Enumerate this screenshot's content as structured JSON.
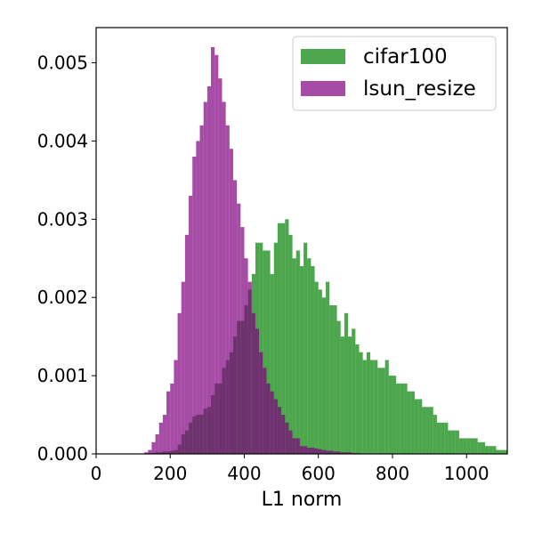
{
  "chart_data": {
    "type": "histogram",
    "title": "",
    "xlabel": "L1 norm",
    "ylabel": "",
    "xlim": [
      0,
      1110
    ],
    "ylim": [
      0,
      0.00545
    ],
    "x_ticks": [
      0,
      200,
      400,
      600,
      800,
      1000
    ],
    "x_tick_labels": [
      "0",
      "200",
      "400",
      "600",
      "800",
      "1000"
    ],
    "y_ticks": [
      0.0,
      0.001,
      0.002,
      0.003,
      0.004,
      0.005
    ],
    "y_tick_labels": [
      "0.000",
      "0.001",
      "0.002",
      "0.003",
      "0.004",
      "0.005"
    ],
    "grid": false,
    "legend_position": "top-right",
    "bin_width": 10,
    "series": [
      {
        "name": "cifar100",
        "color": "#008000",
        "alpha": 0.7,
        "bin_starts": [
          140,
          150,
          160,
          170,
          180,
          190,
          200,
          210,
          220,
          230,
          240,
          250,
          260,
          270,
          280,
          290,
          300,
          310,
          320,
          330,
          340,
          350,
          360,
          370,
          380,
          390,
          400,
          410,
          420,
          430,
          440,
          450,
          460,
          470,
          480,
          490,
          500,
          510,
          520,
          530,
          540,
          550,
          560,
          570,
          580,
          590,
          600,
          610,
          620,
          630,
          640,
          650,
          660,
          670,
          680,
          690,
          700,
          710,
          720,
          730,
          740,
          750,
          760,
          770,
          780,
          790,
          800,
          810,
          820,
          830,
          840,
          850,
          860,
          870,
          880,
          890,
          900,
          910,
          920,
          930,
          940,
          950,
          960,
          970,
          980,
          990,
          1000,
          1010,
          1020,
          1030,
          1040,
          1050,
          1060,
          1070,
          1080,
          1090,
          1100
        ],
        "values": [
          1e-05,
          1e-05,
          2e-05,
          2e-05,
          3e-05,
          3e-05,
          4e-05,
          5e-05,
          0.00012,
          0.00025,
          0.0003,
          0.0004,
          0.00048,
          0.0005,
          0.0005,
          0.00058,
          0.0006,
          0.00075,
          0.0009,
          0.0009,
          0.0011,
          0.0012,
          0.0013,
          0.0015,
          0.0017,
          0.0017,
          0.0019,
          0.0021,
          0.0023,
          0.0027,
          0.0027,
          0.0026,
          0.0026,
          0.0023,
          0.0027,
          0.00295,
          0.00295,
          0.003,
          0.0028,
          0.0025,
          0.0026,
          0.0024,
          0.0027,
          0.0025,
          0.0024,
          0.0022,
          0.0021,
          0.002,
          0.0022,
          0.0019,
          0.0019,
          0.0017,
          0.0015,
          0.0018,
          0.0015,
          0.0016,
          0.0014,
          0.0013,
          0.0012,
          0.0013,
          0.0012,
          0.0012,
          0.0011,
          0.0011,
          0.0012,
          0.001,
          0.001,
          0.0009,
          0.0009,
          0.0009,
          0.0008,
          0.0008,
          0.0007,
          0.0007,
          0.0006,
          0.0006,
          0.0006,
          0.0005,
          0.0004,
          0.0004,
          0.0004,
          0.0003,
          0.0003,
          0.0003,
          0.0002,
          0.0002,
          0.0002,
          0.0002,
          0.0002,
          0.00015,
          0.00015,
          0.0001,
          0.0001,
          0.0001,
          5e-05,
          5e-05,
          5e-05
        ]
      },
      {
        "name": "lsun_resize",
        "color": "#800080",
        "alpha": 0.7,
        "bin_starts": [
          130,
          140,
          150,
          160,
          170,
          180,
          190,
          200,
          210,
          220,
          230,
          240,
          250,
          260,
          270,
          280,
          290,
          300,
          310,
          320,
          330,
          340,
          350,
          360,
          370,
          380,
          390,
          400,
          410,
          420,
          430,
          440,
          450,
          460,
          470,
          480,
          490,
          500,
          510,
          520,
          530,
          540,
          550,
          560,
          570,
          580,
          590,
          600,
          610,
          620,
          630,
          640,
          650,
          660,
          670,
          680,
          690,
          700
        ],
        "values": [
          2e-05,
          5e-05,
          0.00015,
          0.00025,
          0.0004,
          0.0005,
          0.0008,
          0.0009,
          0.0012,
          0.0018,
          0.0022,
          0.0028,
          0.0033,
          0.0038,
          0.004,
          0.0042,
          0.0045,
          0.0047,
          0.0052,
          0.0051,
          0.0048,
          0.0045,
          0.0042,
          0.0039,
          0.0035,
          0.0032,
          0.0029,
          0.0025,
          0.0022,
          0.0018,
          0.0016,
          0.0013,
          0.0011,
          0.0009,
          0.0008,
          0.0007,
          0.0006,
          0.0005,
          0.0004,
          0.0003,
          0.0002,
          0.0002,
          0.0001,
          0.0001,
          8e-05,
          8e-05,
          7e-05,
          6e-05,
          5e-05,
          4e-05,
          4e-05,
          3e-05,
          3e-05,
          2e-05,
          2e-05,
          2e-05,
          1e-05,
          1e-05
        ]
      }
    ]
  }
}
